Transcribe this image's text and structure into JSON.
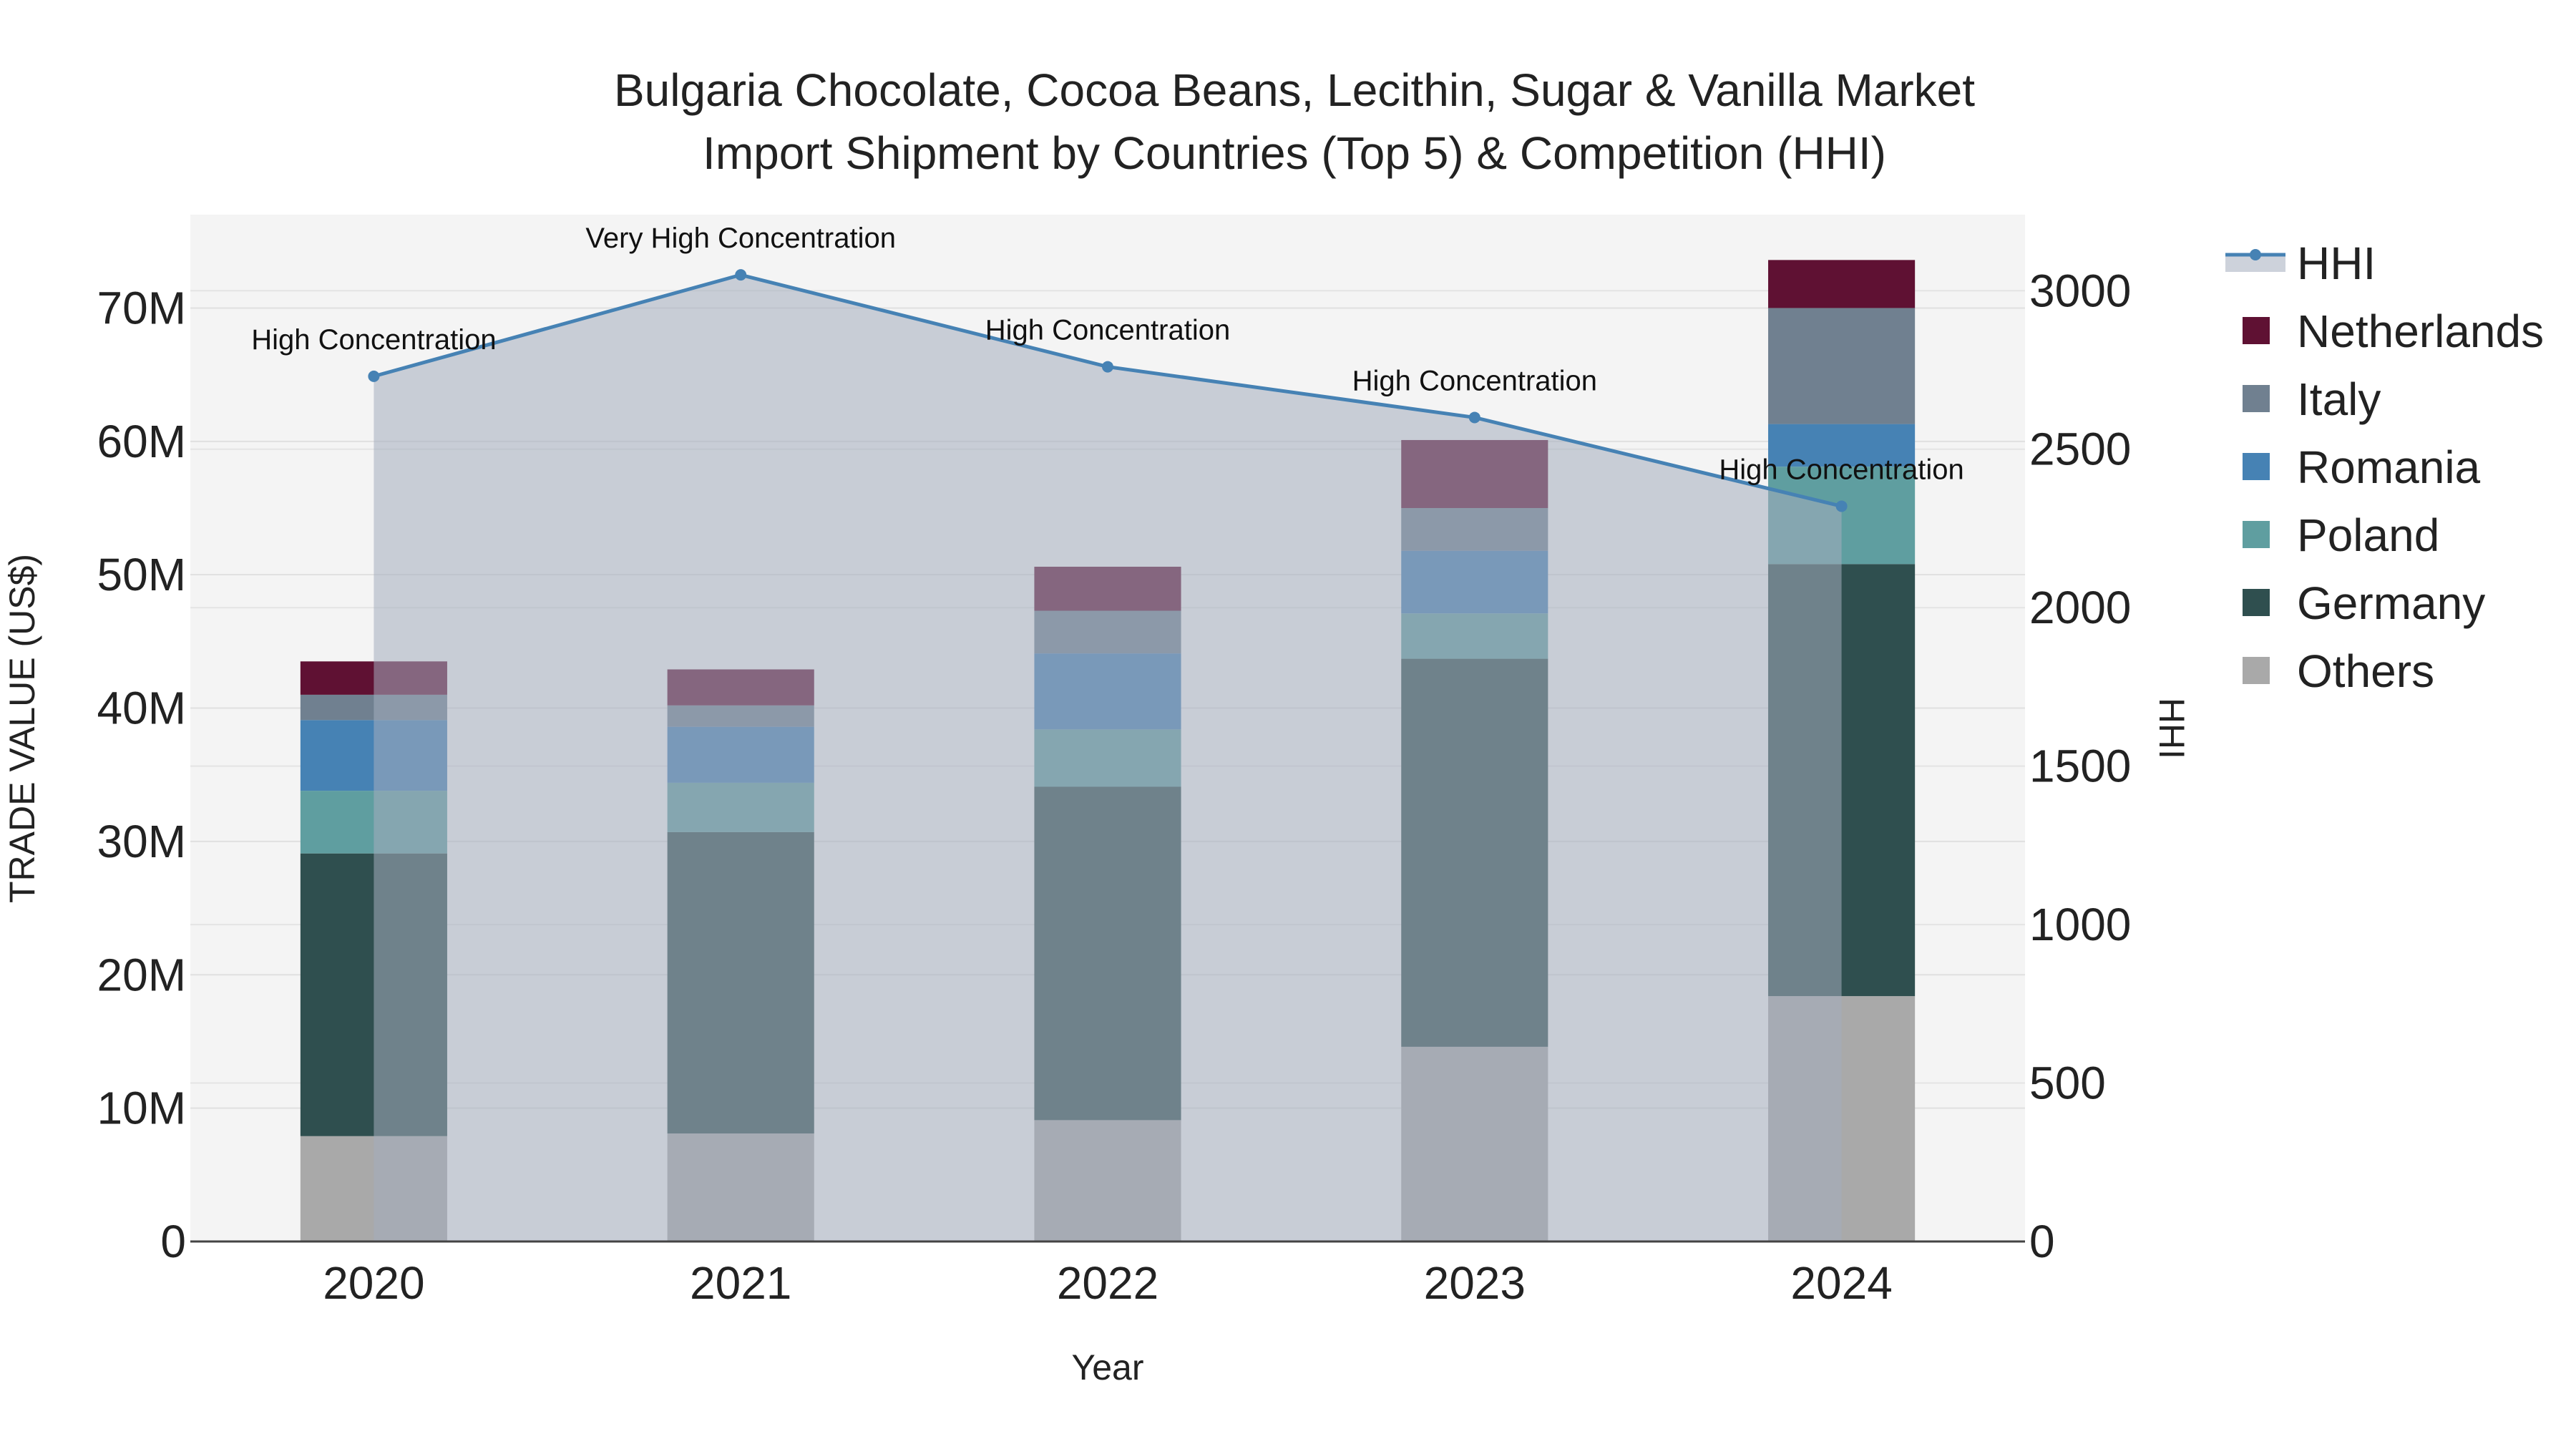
{
  "chart_data": {
    "type": "bar",
    "title": [
      "Bulgaria Chocolate, Cocoa Beans, Lecithin, Sugar & Vanilla Market",
      "Import Shipment by Countries (Top 5) & Competition (HHI)"
    ],
    "xlabel": "Year",
    "ylabel": "TRADE VALUE (US$)",
    "y2label": "HHI",
    "categories": [
      "2020",
      "2021",
      "2022",
      "2023",
      "2024"
    ],
    "ylim": [
      0,
      77000000
    ],
    "y2lim": [
      0,
      3240
    ],
    "yticks": [
      0,
      10000000,
      20000000,
      30000000,
      40000000,
      50000000,
      60000000,
      70000000
    ],
    "ytick_labels": [
      "0",
      "10M",
      "20M",
      "30M",
      "40M",
      "50M",
      "60M",
      "70M"
    ],
    "y2ticks": [
      0,
      500,
      1000,
      1500,
      2000,
      2500,
      3000
    ],
    "y2tick_labels": [
      "0",
      "500",
      "1000",
      "1500",
      "2000",
      "2500",
      "3000"
    ],
    "series": [
      {
        "name": "Others",
        "color": "#a9a9a9",
        "values": [
          7900000,
          8100000,
          9100000,
          14600000,
          18400000
        ]
      },
      {
        "name": "Germany",
        "color": "#2f4f4f",
        "values": [
          21200000,
          22600000,
          25000000,
          29100000,
          32400000
        ]
      },
      {
        "name": "Poland",
        "color": "#5f9ea0",
        "values": [
          4700000,
          3700000,
          4300000,
          3400000,
          7300000
        ]
      },
      {
        "name": "Romania",
        "color": "#4682b4",
        "values": [
          5300000,
          4200000,
          5700000,
          4700000,
          3200000
        ]
      },
      {
        "name": "Italy",
        "color": "#708090",
        "values": [
          1900000,
          1600000,
          3200000,
          3200000,
          8700000
        ]
      },
      {
        "name": "Netherlands",
        "color": "#5f1133",
        "values": [
          2500000,
          2700000,
          3300000,
          5100000,
          3600000
        ]
      }
    ],
    "hhi": {
      "name": "HHI",
      "color": "#4682b4",
      "values": [
        2730,
        3050,
        2760,
        2600,
        2320
      ],
      "labels": [
        "High Concentration",
        "Very High Concentration",
        "High Concentration",
        "High Concentration",
        "High Concentration"
      ]
    },
    "legend_order": [
      "HHI",
      "Netherlands",
      "Italy",
      "Romania",
      "Poland",
      "Germany",
      "Others"
    ],
    "legend_position": "right"
  }
}
